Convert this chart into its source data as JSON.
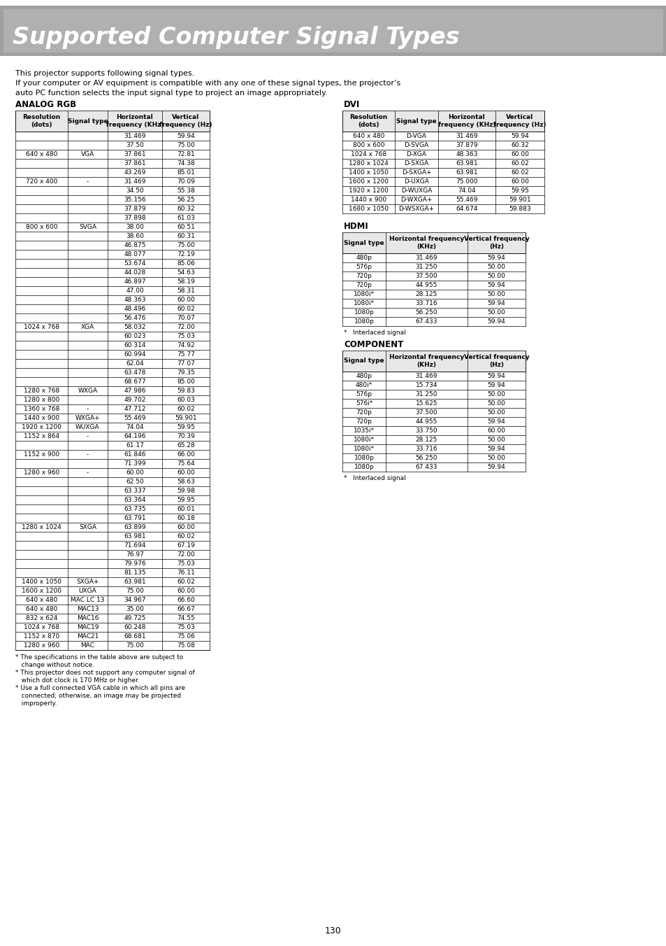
{
  "title": "Supported Computer Signal Types",
  "title_bg": "#a0a0a0",
  "title_color": "#ffffff",
  "intro_text": [
    "This projector supports following signal types.",
    "If your computer or AV equipment is compatible with any one of these signal types, the projector’s",
    "auto PC function selects the input signal type to project an image appropriately."
  ],
  "analog_rgb_label": "ANALOG RGB",
  "dvi_label": "DVI",
  "hdmi_label": "HDMI",
  "component_label": "COMPONENT",
  "analog_rgb_headers": [
    "Resolution\n(dots)",
    "Signal type",
    "Horizontal\nfrequency (KHz)",
    "Vertical\nfrequency (Hz)"
  ],
  "analog_rgb_rows": [
    [
      "640 x 480",
      "VGA",
      "31.469",
      "59.94"
    ],
    [
      "",
      "",
      "37.50",
      "75.00"
    ],
    [
      "",
      "",
      "37.861",
      "72.81"
    ],
    [
      "",
      "",
      "37.861",
      "74.38"
    ],
    [
      "",
      "",
      "43.269",
      "85.01"
    ],
    [
      "720 x 400",
      "-",
      "31.469",
      "70.09"
    ],
    [
      "800 x 600",
      "SVGA",
      "34.50",
      "55.38"
    ],
    [
      "",
      "",
      "35.156",
      "56.25"
    ],
    [
      "",
      "",
      "37.879",
      "60.32"
    ],
    [
      "",
      "",
      "37.898",
      "61.03"
    ],
    [
      "",
      "",
      "38.00",
      "60.51"
    ],
    [
      "",
      "",
      "38.60",
      "60.31"
    ],
    [
      "",
      "",
      "46.875",
      "75.00"
    ],
    [
      "",
      "",
      "48.077",
      "72.19"
    ],
    [
      "",
      "",
      "53.674",
      "85.06"
    ],
    [
      "1024 x 768",
      "XGA",
      "44.028",
      "54.63"
    ],
    [
      "",
      "",
      "46.897",
      "58.19"
    ],
    [
      "",
      "",
      "47.00",
      "58.31"
    ],
    [
      "",
      "",
      "48.363",
      "60.00"
    ],
    [
      "",
      "",
      "48.496",
      "60.02"
    ],
    [
      "",
      "",
      "56.476",
      "70.07"
    ],
    [
      "",
      "",
      "58.032",
      "72.00"
    ],
    [
      "",
      "",
      "60.023",
      "75.03"
    ],
    [
      "",
      "",
      "60.314",
      "74.92"
    ],
    [
      "",
      "",
      "60.994",
      "75.77"
    ],
    [
      "",
      "",
      "62.04",
      "77.07"
    ],
    [
      "",
      "",
      "63.478",
      "79.35"
    ],
    [
      "",
      "",
      "68.677",
      "85.00"
    ],
    [
      "1280 x 768",
      "WXGA",
      "47.986",
      "59.83"
    ],
    [
      "1280 x 800",
      "",
      "49.702",
      "60.03"
    ],
    [
      "1360 x 768",
      "-",
      "47.712",
      "60.02"
    ],
    [
      "1440 x 900",
      "WXGA+",
      "55.469",
      "59.901"
    ],
    [
      "1920 x 1200",
      "WUXGA",
      "74.04",
      "59.95"
    ],
    [
      "1152 x 864",
      "-",
      "64.196",
      "70.39"
    ],
    [
      "1152 x 900",
      "-",
      "61.17",
      "65.28"
    ],
    [
      "",
      "",
      "61.846",
      "66.00"
    ],
    [
      "",
      "",
      "71.399",
      "75.64"
    ],
    [
      "1280 x 960",
      "-",
      "60.00",
      "60.00"
    ],
    [
      "1280 x 1024",
      "SXGA",
      "62.50",
      "58.63"
    ],
    [
      "",
      "",
      "63.337",
      "59.98"
    ],
    [
      "",
      "",
      "63.364",
      "59.95"
    ],
    [
      "",
      "",
      "63.735",
      "60.01"
    ],
    [
      "",
      "",
      "63.791",
      "60.18"
    ],
    [
      "",
      "",
      "63.899",
      "60.00"
    ],
    [
      "",
      "",
      "63.981",
      "60.02"
    ],
    [
      "",
      "",
      "71.694",
      "67.19"
    ],
    [
      "",
      "",
      "76.97",
      "72.00"
    ],
    [
      "",
      "",
      "79.976",
      "75.03"
    ],
    [
      "",
      "",
      "81.135",
      "76.11"
    ],
    [
      "1400 x 1050",
      "SXGA+",
      "63.981",
      "60.02"
    ],
    [
      "1600 x 1200",
      "UXGA",
      "75.00",
      "60.00"
    ],
    [
      "640 x 480",
      "MAC LC 13",
      "34.967",
      "66.60"
    ],
    [
      "640 x 480",
      "MAC13",
      "35.00",
      "66.67"
    ],
    [
      "832 x 624",
      "MAC16",
      "49.725",
      "74.55"
    ],
    [
      "1024 x 768",
      "MAC19",
      "60.248",
      "75.03"
    ],
    [
      "1152 x 870",
      "MAC21",
      "68.681",
      "75.06"
    ],
    [
      "1280 x 960",
      "MAC",
      "75.00",
      "75.08"
    ]
  ],
  "dvi_headers": [
    "Resolution\n(dots)",
    "Signal type",
    "Horizontal\nfrequency (KHz)",
    "Vertical\nfrequency (Hz)"
  ],
  "dvi_rows": [
    [
      "640 x 480",
      "D-VGA",
      "31.469",
      "59.94"
    ],
    [
      "800 x 600",
      "D-SVGA",
      "37.879",
      "60.32"
    ],
    [
      "1024 x 768",
      "D-XGA",
      "48.363",
      "60.00"
    ],
    [
      "1280 x 1024",
      "D-SXGA",
      "63.981",
      "60.02"
    ],
    [
      "1400 x 1050",
      "D-SXGA+",
      "63.981",
      "60.02"
    ],
    [
      "1600 x 1200",
      "D-UXGA",
      "75.000",
      "60.00"
    ],
    [
      "1920 x 1200",
      "D-WUXGA",
      "74.04",
      "59.95"
    ],
    [
      "1440 x 900",
      "D-WXGA+",
      "55.469",
      "59.901"
    ],
    [
      "1680 x 1050",
      "D-WSXGA+",
      "64.674",
      "59.883"
    ]
  ],
  "hdmi_headers": [
    "Signal type",
    "Horizontal frequency\n(KHz)",
    "Vertical frequency\n(Hz)"
  ],
  "hdmi_rows": [
    [
      "480p",
      "31.469",
      "59.94"
    ],
    [
      "576p",
      "31.250",
      "50.00"
    ],
    [
      "720p",
      "37.500",
      "50.00"
    ],
    [
      "720p",
      "44.955",
      "59.94"
    ],
    [
      "1080i*",
      "28.125",
      "50.00"
    ],
    [
      "1080i*",
      "33.716",
      "59.94"
    ],
    [
      "1080p",
      "56.250",
      "50.00"
    ],
    [
      "1080p",
      "67.433",
      "59.94"
    ]
  ],
  "component_headers": [
    "Signal type",
    "Horizontal frequency\n(KHz)",
    "Vertical frequency\n(Hz)"
  ],
  "component_rows": [
    [
      "480p",
      "31.469",
      "59.94"
    ],
    [
      "480i*",
      "15.734",
      "59.94"
    ],
    [
      "576p",
      "31.250",
      "50.00"
    ],
    [
      "576i*",
      "15.625",
      "50.00"
    ],
    [
      "720p",
      "37.500",
      "50.00"
    ],
    [
      "720p",
      "44.955",
      "59.94"
    ],
    [
      "1035i*",
      "33.750",
      "60.00"
    ],
    [
      "1080i*",
      "28.125",
      "50.00"
    ],
    [
      "1080i*",
      "33.716",
      "59.94"
    ],
    [
      "1080p",
      "56.250",
      "50.00"
    ],
    [
      "1080p",
      "67.433",
      "59.94"
    ]
  ],
  "footnotes": [
    "*   The specifications in the table above are subject to\n    change without notice.",
    "*   This projector does not support any computer signal of\n    which dot clock is 170 MHz or higher.",
    "*   Use a full connected VGA cable in which all pins are\n    connected; otherwise, an image may be projected\n    improperly."
  ],
  "hdmi_note": "*   Interlaced signal",
  "component_note": "*   Interlaced signal",
  "page_number": "130"
}
